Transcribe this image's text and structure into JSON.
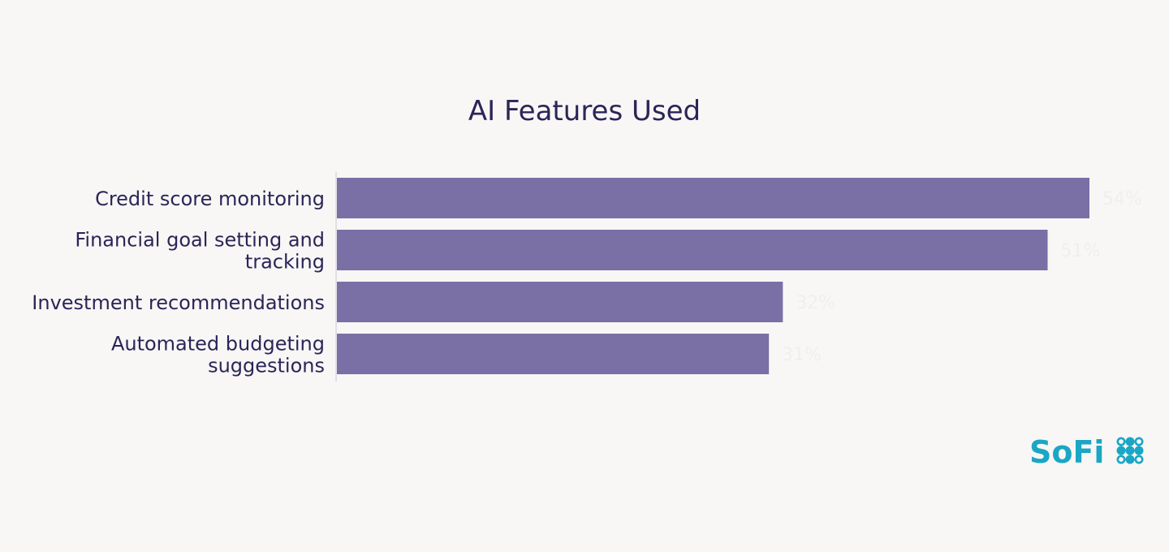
{
  "chart_data": {
    "type": "bar",
    "orientation": "horizontal",
    "title": "AI Features Used",
    "categories": [
      [
        "Credit score monitoring"
      ],
      [
        "Financial goal setting and",
        "tracking"
      ],
      [
        "Investment recommendations"
      ],
      [
        "Automated budgeting",
        "suggestions"
      ]
    ],
    "values": [
      54,
      51,
      32,
      31
    ],
    "value_labels": [
      "54%",
      "51%",
      "32%",
      "31%"
    ],
    "xlim": [
      0,
      54
    ],
    "grid": false,
    "legend": "none",
    "bar_color": "#7a70a6",
    "title_color": "#2b2558",
    "label_color": "#2b2558",
    "value_label_color": "#f0eef0"
  },
  "logo": {
    "text": "SoFi",
    "color": "#1aa6c4",
    "icon": "sofi-dots-icon"
  }
}
